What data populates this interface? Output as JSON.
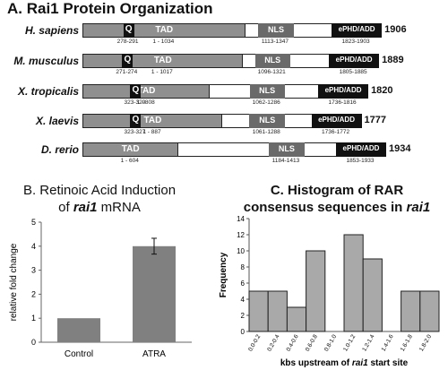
{
  "panel_a": {
    "title": "A. Rai1 Protein Organization",
    "rows": [
      {
        "species": "H. sapiens",
        "length": "1906",
        "tad_label": "TAD",
        "nls_label": "NLS",
        "phd_label": "ePHD/ADD",
        "q_label": "Q",
        "q_range": "278-291",
        "tad_range": "1 - 1034",
        "nls_range": "1113-1347",
        "phd_range": "1823-1903"
      },
      {
        "species": "M. musculus",
        "length": "1889",
        "tad_label": "TAD",
        "nls_label": "NLS",
        "phd_label": "ePHD/ADD",
        "q_label": "Q",
        "q_range": "271-274",
        "tad_range": "1 - 1017",
        "nls_range": "1096-1321",
        "phd_range": "1805-1885"
      },
      {
        "species": "X. tropicalis",
        "length": "1820",
        "tad_label": "TAD",
        "nls_label": "NLS",
        "phd_label": "ePHD/ADD",
        "q_label": "Q",
        "q_range": "323-329",
        "tad_range": "1 - 808",
        "nls_range": "1062-1286",
        "phd_range": "1736-1816"
      },
      {
        "species": "X. laevis",
        "length": "1777",
        "tad_label": "TAD",
        "nls_label": "NLS",
        "phd_label": "ePHD/ADD",
        "q_label": "Q",
        "q_range": "323-327",
        "tad_range": "1 - 887",
        "nls_range": "1061-1288",
        "phd_range": "1736-1772"
      },
      {
        "species": "D. rerio",
        "length": "1934",
        "tad_label": "TAD",
        "nls_label": "NLS",
        "phd_label": "ePHD/ADD",
        "tad_range": "1 - 604",
        "nls_range": "1184-1413",
        "phd_range": "1853-1933"
      }
    ]
  },
  "panel_b": {
    "title_line1": "B. Retinoic Acid Induction",
    "title_line2_pre": "of ",
    "title_line2_gene": "rai1",
    "title_line2_post": " mRNA",
    "chart_data": {
      "type": "bar",
      "categories": [
        "Control",
        "ATRA"
      ],
      "values": [
        1.0,
        4.0
      ],
      "error": [
        0,
        0.33
      ],
      "ylabel": "relative fold change",
      "ylim": [
        0,
        5
      ],
      "yticks": [
        "0",
        "1",
        "2",
        "3",
        "4",
        "5"
      ],
      "bar_color": "#808080"
    }
  },
  "panel_c": {
    "title_line1": "C. Histogram of RAR",
    "title_line2_pre": "consensus sequences in ",
    "title_line2_gene": "rai1",
    "xlabel_pre": "kbs upstream of ",
    "xlabel_gene": "rai1",
    "xlabel_post": " start site",
    "chart_data": {
      "type": "bar",
      "categories": [
        "0.0-0.2",
        "0.2-0.4",
        "0.4-0.6",
        "0.6-0.8",
        "0.8-1.0",
        "1.0-1.2",
        "1.2-1.4",
        "1.4-1.6",
        "1.6-1.8",
        "1.8-2.0"
      ],
      "values": [
        5,
        5,
        3,
        10,
        0,
        12,
        9,
        0,
        5,
        5
      ],
      "ylabel": "Frequency",
      "ylim": [
        0,
        14
      ],
      "yticks": [
        "0",
        "2",
        "4",
        "6",
        "8",
        "10",
        "12",
        "14"
      ],
      "bar_color": "#a9a9a9"
    }
  }
}
